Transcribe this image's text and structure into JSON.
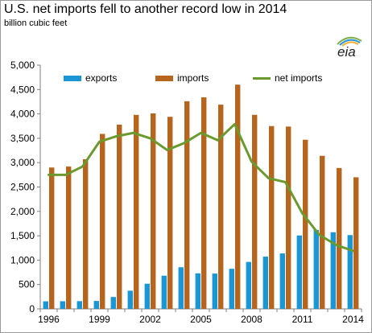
{
  "chart_data": {
    "type": "bar",
    "title": "U.S. net imports  fell to another  record low  in 2014",
    "subtitle": "billion cubic feet",
    "logo_text": "eia",
    "x": [
      1996,
      1997,
      1998,
      1999,
      2000,
      2001,
      2002,
      2003,
      2004,
      2005,
      2006,
      2007,
      2008,
      2009,
      2010,
      2011,
      2012,
      2013,
      2014
    ],
    "x_tick_labels": [
      "1996",
      "1999",
      "2002",
      "2005",
      "2008",
      "2011",
      "2014"
    ],
    "y_tick_labels": [
      "0",
      "500",
      "1,000",
      "1,500",
      "2,000",
      "2,500",
      "3,000",
      "3,500",
      "4,000",
      "4,500",
      "5,000"
    ],
    "ylim": [
      0,
      5000
    ],
    "grid": false,
    "legend_position": "top",
    "series": [
      {
        "name": "exports",
        "type": "bar",
        "color": "#1a96d4",
        "values": [
          155,
          157,
          159,
          163,
          244,
          373,
          516,
          680,
          854,
          729,
          724,
          822,
          963,
          1072,
          1137,
          1506,
          1619,
          1572,
          1514
        ]
      },
      {
        "name": "imports",
        "type": "bar",
        "color": "#b5651d",
        "values": [
          2900,
          2920,
          3070,
          3590,
          3780,
          3980,
          4010,
          3940,
          4260,
          4340,
          4190,
          4600,
          3980,
          3750,
          3740,
          3470,
          3140,
          2890,
          2700
        ]
      },
      {
        "name": "net imports",
        "type": "line",
        "color": "#6a9a2e",
        "values": [
          2750,
          2750,
          2920,
          3430,
          3540,
          3610,
          3500,
          3260,
          3400,
          3610,
          3460,
          3790,
          3020,
          2680,
          2600,
          1960,
          1520,
          1310,
          1190
        ]
      }
    ]
  }
}
